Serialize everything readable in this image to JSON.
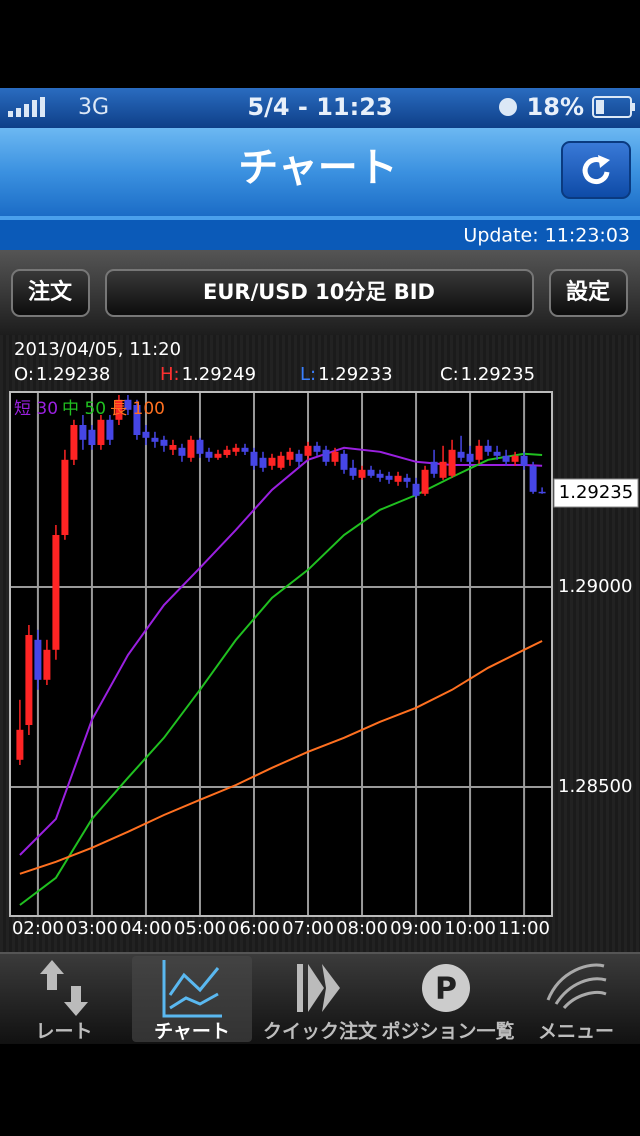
{
  "status_bar": {
    "carrier": "3G",
    "time": "5/4 - 11:23",
    "battery": "18%"
  },
  "nav": {
    "title": "チャート"
  },
  "update": "Update: 11:23:03",
  "toolbar": {
    "left": "注文",
    "center": "EUR/USD 10分足 BID",
    "right": "設定"
  },
  "chart_data": {
    "type": "candlestick",
    "date": "2013/04/05, 11:20",
    "ohlc_info": [
      {
        "label": "O:",
        "value": 1.29238,
        "color": "#ffffff"
      },
      {
        "label": "H:",
        "value": 1.29249,
        "color": "#ff3030"
      },
      {
        "label": "L:",
        "value": 1.29233,
        "color": "#3a80ff"
      },
      {
        "label": "C:",
        "value": 1.29235,
        "color": "#ffffff"
      }
    ],
    "xlim": [
      -1.1,
      59.1
    ],
    "xticks": [
      {
        "value": 2,
        "label": "02:00"
      },
      {
        "value": 8,
        "label": "03:00"
      },
      {
        "value": 14,
        "label": "04:00"
      },
      {
        "value": 20,
        "label": "05:00"
      },
      {
        "value": 26,
        "label": "06:00"
      },
      {
        "value": 32,
        "label": "07:00"
      },
      {
        "value": 38,
        "label": "08:00"
      },
      {
        "value": 44,
        "label": "09:00"
      },
      {
        "value": 50,
        "label": "10:00"
      },
      {
        "value": 56,
        "label": "11:00"
      }
    ],
    "ylim": [
      1.281775,
      1.294875
    ],
    "yticks": [
      {
        "value": 1.285,
        "label": "1.28500"
      },
      {
        "value": 1.29,
        "label": "1.29000"
      }
    ],
    "last_price": {
      "value": 1.29235,
      "label": "1.29235"
    },
    "grid": true,
    "up_color": "#ff2424",
    "down_color": "#4646e6",
    "open": [
      1.28568,
      1.28655,
      1.28868,
      1.28768,
      1.28843,
      1.2913,
      1.29318,
      1.29405,
      1.29393,
      1.29355,
      1.29418,
      1.29418,
      1.29468,
      1.29455,
      1.29388,
      1.29373,
      1.29368,
      1.29343,
      1.29348,
      1.29323,
      1.29368,
      1.29338,
      1.29323,
      1.2933,
      1.29338,
      1.29348,
      1.29338,
      1.29323,
      1.29303,
      1.29298,
      1.29318,
      1.29333,
      1.29328,
      1.29353,
      1.29343,
      1.29313,
      1.29333,
      1.29298,
      1.29273,
      1.29293,
      1.29283,
      1.29278,
      1.29263,
      1.29273,
      1.29258,
      1.29233,
      1.29313,
      1.29273,
      1.29278,
      1.29338,
      1.29333,
      1.29318,
      1.29353,
      1.29338,
      1.29328,
      1.29313,
      1.29328,
      1.29303,
      1.29238
    ],
    "high": [
      1.28718,
      1.28905,
      1.28893,
      1.28868,
      1.29155,
      1.29343,
      1.29418,
      1.2943,
      1.29405,
      1.2943,
      1.2943,
      1.2948,
      1.2948,
      1.29468,
      1.29405,
      1.29388,
      1.29378,
      1.29368,
      1.29358,
      1.29378,
      1.29373,
      1.29348,
      1.29343,
      1.29353,
      1.29358,
      1.29358,
      1.29348,
      1.29338,
      1.29333,
      1.29338,
      1.29348,
      1.29343,
      1.29363,
      1.29363,
      1.29353,
      1.29348,
      1.29343,
      1.29318,
      1.29303,
      1.29303,
      1.29293,
      1.29288,
      1.29288,
      1.29283,
      1.29273,
      1.29303,
      1.29343,
      1.29353,
      1.29368,
      1.29378,
      1.29353,
      1.29368,
      1.29368,
      1.29353,
      1.29343,
      1.29338,
      1.29338,
      1.29313,
      1.29249
    ],
    "low": [
      1.28555,
      1.2863,
      1.28743,
      1.28755,
      1.28818,
      1.29118,
      1.29305,
      1.29343,
      1.29343,
      1.29343,
      1.29355,
      1.29405,
      1.2943,
      1.29368,
      1.29355,
      1.29348,
      1.29338,
      1.2933,
      1.29313,
      1.29313,
      1.29323,
      1.29313,
      1.29318,
      1.29323,
      1.29328,
      1.2933,
      1.29293,
      1.29288,
      1.29293,
      1.29293,
      1.29303,
      1.29298,
      1.29318,
      1.29328,
      1.29303,
      1.29303,
      1.29283,
      1.29268,
      1.29268,
      1.29273,
      1.29263,
      1.29258,
      1.29253,
      1.29248,
      1.29223,
      1.29228,
      1.29273,
      1.29268,
      1.29273,
      1.29313,
      1.29303,
      1.29308,
      1.29328,
      1.29318,
      1.29303,
      1.29303,
      1.29293,
      1.29233,
      1.29233
    ],
    "close": [
      1.28643,
      1.2888,
      1.28768,
      1.28843,
      1.2913,
      1.29318,
      1.29405,
      1.29368,
      1.29355,
      1.29418,
      1.29368,
      1.29468,
      1.29443,
      1.2938,
      1.29373,
      1.29363,
      1.29353,
      1.29355,
      1.29328,
      1.29368,
      1.29333,
      1.29323,
      1.29333,
      1.29343,
      1.29348,
      1.29338,
      1.29303,
      1.29298,
      1.29323,
      1.29328,
      1.29338,
      1.29313,
      1.29353,
      1.29338,
      1.29313,
      1.29338,
      1.29293,
      1.29278,
      1.29293,
      1.29278,
      1.29273,
      1.29268,
      1.29278,
      1.29263,
      1.29228,
      1.29293,
      1.29283,
      1.29313,
      1.29343,
      1.29323,
      1.29313,
      1.29353,
      1.29338,
      1.29328,
      1.29313,
      1.29328,
      1.29303,
      1.29238,
      1.29235
    ],
    "series": [
      {
        "name": "短 30",
        "color": "#9a20e0",
        "x": [
          0,
          4,
          8,
          12,
          16,
          20,
          24,
          28,
          32,
          36,
          40,
          44,
          48,
          52,
          56,
          58
        ],
        "values": [
          1.2833,
          1.2842,
          1.28668,
          1.2883,
          1.28955,
          1.29048,
          1.29143,
          1.29243,
          1.29318,
          1.29348,
          1.29338,
          1.29313,
          1.29305,
          1.29305,
          1.29305,
          1.29303
        ]
      },
      {
        "name": "中 50",
        "color": "#20c020",
        "x": [
          0,
          4,
          8,
          12,
          16,
          20,
          24,
          28,
          32,
          36,
          40,
          44,
          48,
          52,
          56,
          58
        ],
        "values": [
          1.28205,
          1.28273,
          1.2842,
          1.28523,
          1.28623,
          1.28743,
          1.28868,
          1.28973,
          1.29043,
          1.2913,
          1.29193,
          1.2923,
          1.29275,
          1.29318,
          1.29333,
          1.2933
        ]
      },
      {
        "name": "長 100",
        "color": "#ff7020",
        "x": [
          0,
          4,
          8,
          12,
          16,
          20,
          24,
          28,
          32,
          36,
          40,
          44,
          48,
          52,
          56,
          58
        ],
        "values": [
          1.28283,
          1.28313,
          1.28348,
          1.28388,
          1.2843,
          1.28468,
          1.28505,
          1.28548,
          1.28588,
          1.28623,
          1.28663,
          1.28698,
          1.28743,
          1.28798,
          1.28843,
          1.28865
        ]
      }
    ]
  },
  "tabs": [
    {
      "label": "レート",
      "selected": false
    },
    {
      "label": "チャート",
      "selected": true
    },
    {
      "label": "クイック注文",
      "selected": false
    },
    {
      "label": "ポジション一覧",
      "selected": false
    },
    {
      "label": "メニュー",
      "selected": false
    }
  ]
}
